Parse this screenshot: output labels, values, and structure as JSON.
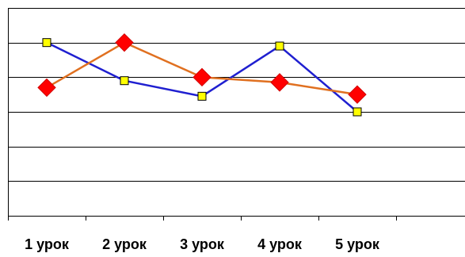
{
  "chart_data": {
    "type": "line",
    "categories": [
      "1 урок",
      "2 урок",
      "3 урок",
      "4 урок",
      "5 урок"
    ],
    "ylim": [
      0,
      6
    ],
    "grid": true,
    "legend": "none",
    "title": "",
    "xlabel": "",
    "ylabel": "",
    "series": [
      {
        "color": "#1f1fd0",
        "marker": "square",
        "marker_color": "#ffff00",
        "values": [
          5.0,
          3.9,
          3.45,
          4.9,
          3.0
        ]
      },
      {
        "color": "#e07020",
        "marker": "diamond",
        "marker_color": "#ff0000",
        "values": [
          3.7,
          5.0,
          4.0,
          3.85,
          3.5
        ]
      }
    ]
  }
}
